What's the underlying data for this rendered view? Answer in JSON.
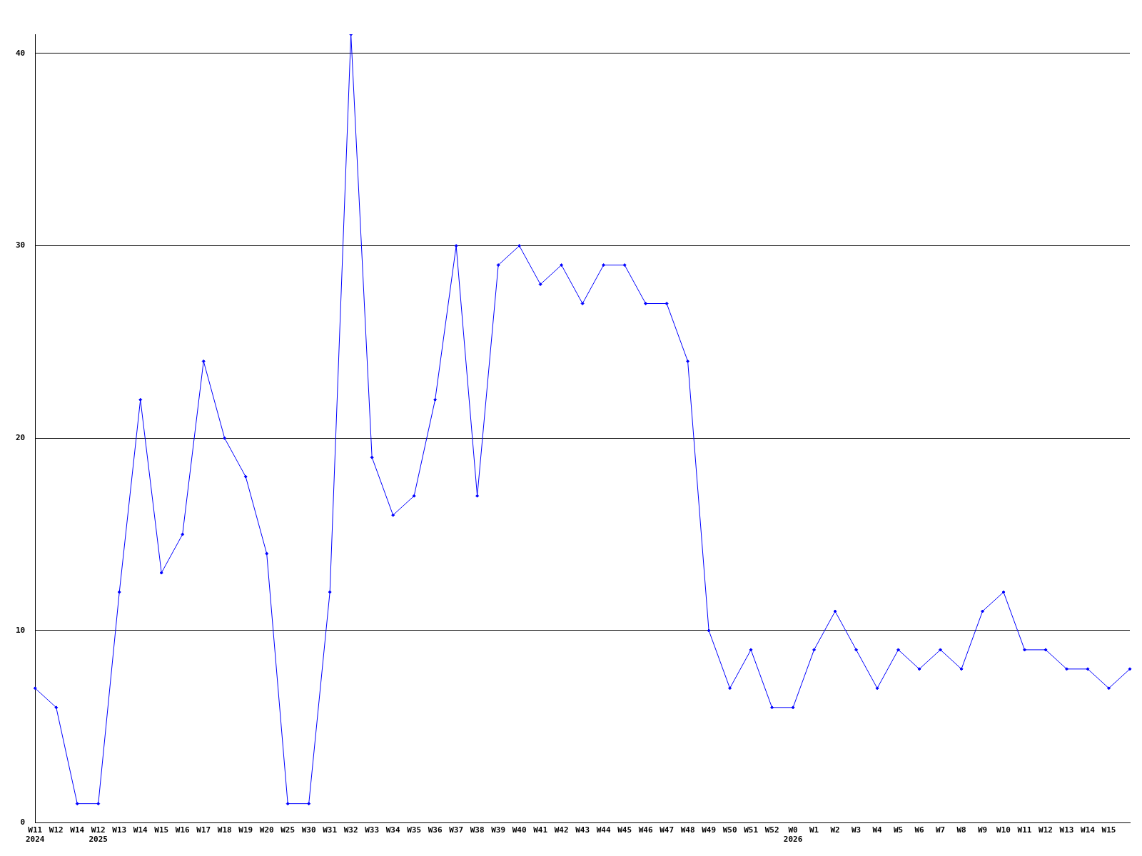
{
  "chart_data": {
    "type": "line",
    "categories": [
      "W11\n2024",
      "W12",
      "W14",
      "W12\n2025",
      "W13",
      "W14",
      "W15",
      "W16",
      "W17",
      "W18",
      "W19",
      "W20",
      "W25",
      "W30",
      "W31",
      "W32",
      "W33",
      "W34",
      "W35",
      "W36",
      "W37",
      "W38",
      "W39",
      "W40",
      "W41",
      "W42",
      "W43",
      "W44",
      "W45",
      "W46",
      "W47",
      "W48",
      "W49",
      "W50",
      "W51",
      "W52",
      "W0\n2026",
      "W1",
      "W2",
      "W3",
      "W4",
      "W5",
      "W6",
      "W7",
      "W8",
      "W9",
      "W10",
      "W11",
      "W12",
      "W13",
      "W14",
      "W15",
      null
    ],
    "series": [
      {
        "color": "#0000ff",
        "values": [
          7,
          6,
          1,
          1,
          12,
          22,
          13,
          15,
          24,
          20,
          18,
          14,
          1,
          1,
          12,
          41,
          19,
          16,
          17,
          22,
          30,
          17,
          29,
          30,
          28,
          29,
          27,
          29,
          29,
          27,
          27,
          24,
          10,
          7,
          9,
          6,
          6,
          9,
          11,
          9,
          7,
          9,
          8,
          9,
          8,
          11,
          12,
          9,
          9,
          8,
          8,
          7,
          8
        ]
      }
    ],
    "ylim": [
      0,
      41
    ],
    "yticks": [
      0,
      10,
      20,
      30,
      40
    ],
    "grid": "y",
    "legend": false,
    "marker": "diamond",
    "line_style": "solid"
  }
}
